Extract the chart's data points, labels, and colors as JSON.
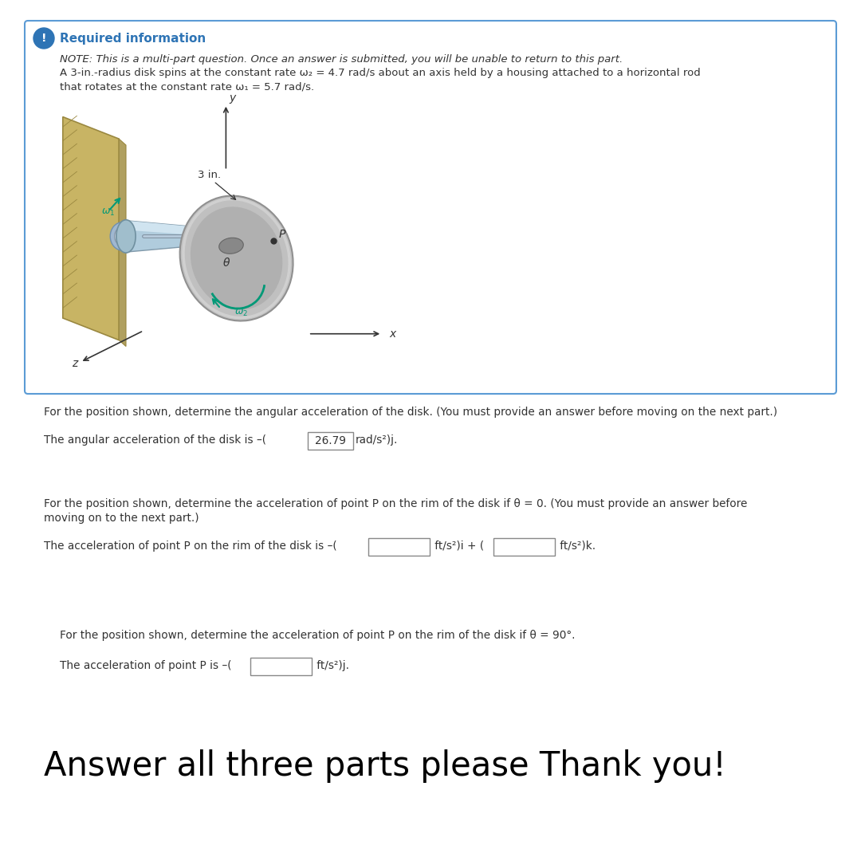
{
  "bg_color": "#ffffff",
  "outer_border_color": "#5b9bd5",
  "required_info_text": "Required information",
  "required_info_color": "#2e74b5",
  "note_line1": "NOTE: This is a multi-part question. Once an answer is submitted, you will be unable to return to this part.",
  "note_line2": "A 3-in.-radius disk spins at the constant rate ω₂ = 4.7 rad/s about an axis held by a housing attached to a horizontal rod",
  "note_line3": "that rotates at the constant rate ω₁ = 5.7 rad/s.",
  "q1_text": "For the position shown, determine the angular acceleration of the disk. (You must provide an answer before moving on the next part.)",
  "ans1_prefix": "The angular acceleration of the disk is –(",
  "ans1_value": "26.79",
  "ans1_suffix": "rad/s²)j.",
  "q2_line1": "For the position shown, determine the acceleration of point P on the rim of the disk if θ = 0. (You must provide an answer before",
  "q2_line2": "moving on to the next part.)",
  "ans2_prefix": "The acceleration of point P on the rim of the disk is –(",
  "ans2_suffix1": "ft/s²)i + (",
  "ans2_suffix2": "ft/s²)k.",
  "q3_text": "For the position shown, determine the acceleration of point P on the rim of the disk if θ = 90°.",
  "ans3_prefix": "The acceleration of point P is –(",
  "ans3_suffix": "ft/s²)j.",
  "big_text": "Answer all three parts please Thank you!"
}
